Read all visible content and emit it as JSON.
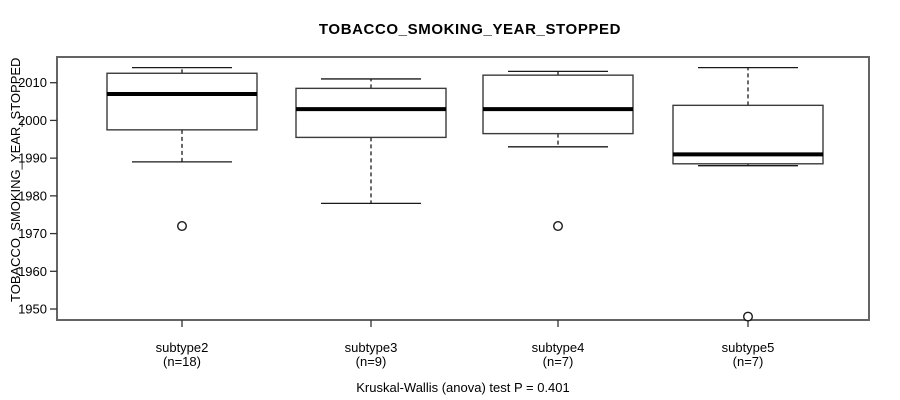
{
  "chart_data": {
    "type": "boxplot",
    "title": "TOBACCO_SMOKING_YEAR_STOPPED",
    "ylabel": "TOBACCO_SMOKING_YEAR_STOPPED",
    "xlabel": "",
    "annotation": "Kruskal-Wallis (anova) test P = 0.401",
    "ylim": [
      1945,
      2016
    ],
    "yticks": [
      1950,
      1960,
      1970,
      1980,
      1990,
      2000,
      2010
    ],
    "grid": false,
    "legend_position": "none",
    "categories": [
      "subtype2",
      "subtype3",
      "subtype4",
      "subtype5"
    ],
    "counts_display": [
      "(n=18)",
      "(n=9)",
      "(n=7)",
      "(n=7)"
    ],
    "series": [
      {
        "name": "subtype2",
        "n": 18,
        "whisker_low": 1989,
        "q1": 1997.5,
        "median": 2007,
        "q3": 2012.5,
        "whisker_high": 2014,
        "outliers": [
          1972
        ]
      },
      {
        "name": "subtype3",
        "n": 9,
        "whisker_low": 1978,
        "q1": 1995.5,
        "median": 2003,
        "q3": 2008.5,
        "whisker_high": 2011,
        "outliers": []
      },
      {
        "name": "subtype4",
        "n": 7,
        "whisker_low": 1993,
        "q1": 1996.5,
        "median": 2003,
        "q3": 2012,
        "whisker_high": 2013,
        "outliers": [
          1972
        ]
      },
      {
        "name": "subtype5",
        "n": 7,
        "whisker_low": 1988,
        "q1": 1988.5,
        "median": 1991,
        "q3": 2004,
        "whisker_high": 2014,
        "outliers": [
          1948
        ]
      }
    ]
  },
  "colors": {
    "background": "#ffffff",
    "frame_stroke": "#646464",
    "box_stroke": "#3b3b3b",
    "box_fill": "#ffffff",
    "median_stroke": "#000000",
    "whisker_stroke": "#1a1a1a",
    "outlier_stroke": "#1a1a1a",
    "tick_stroke": "#333333",
    "text": "#000000"
  }
}
